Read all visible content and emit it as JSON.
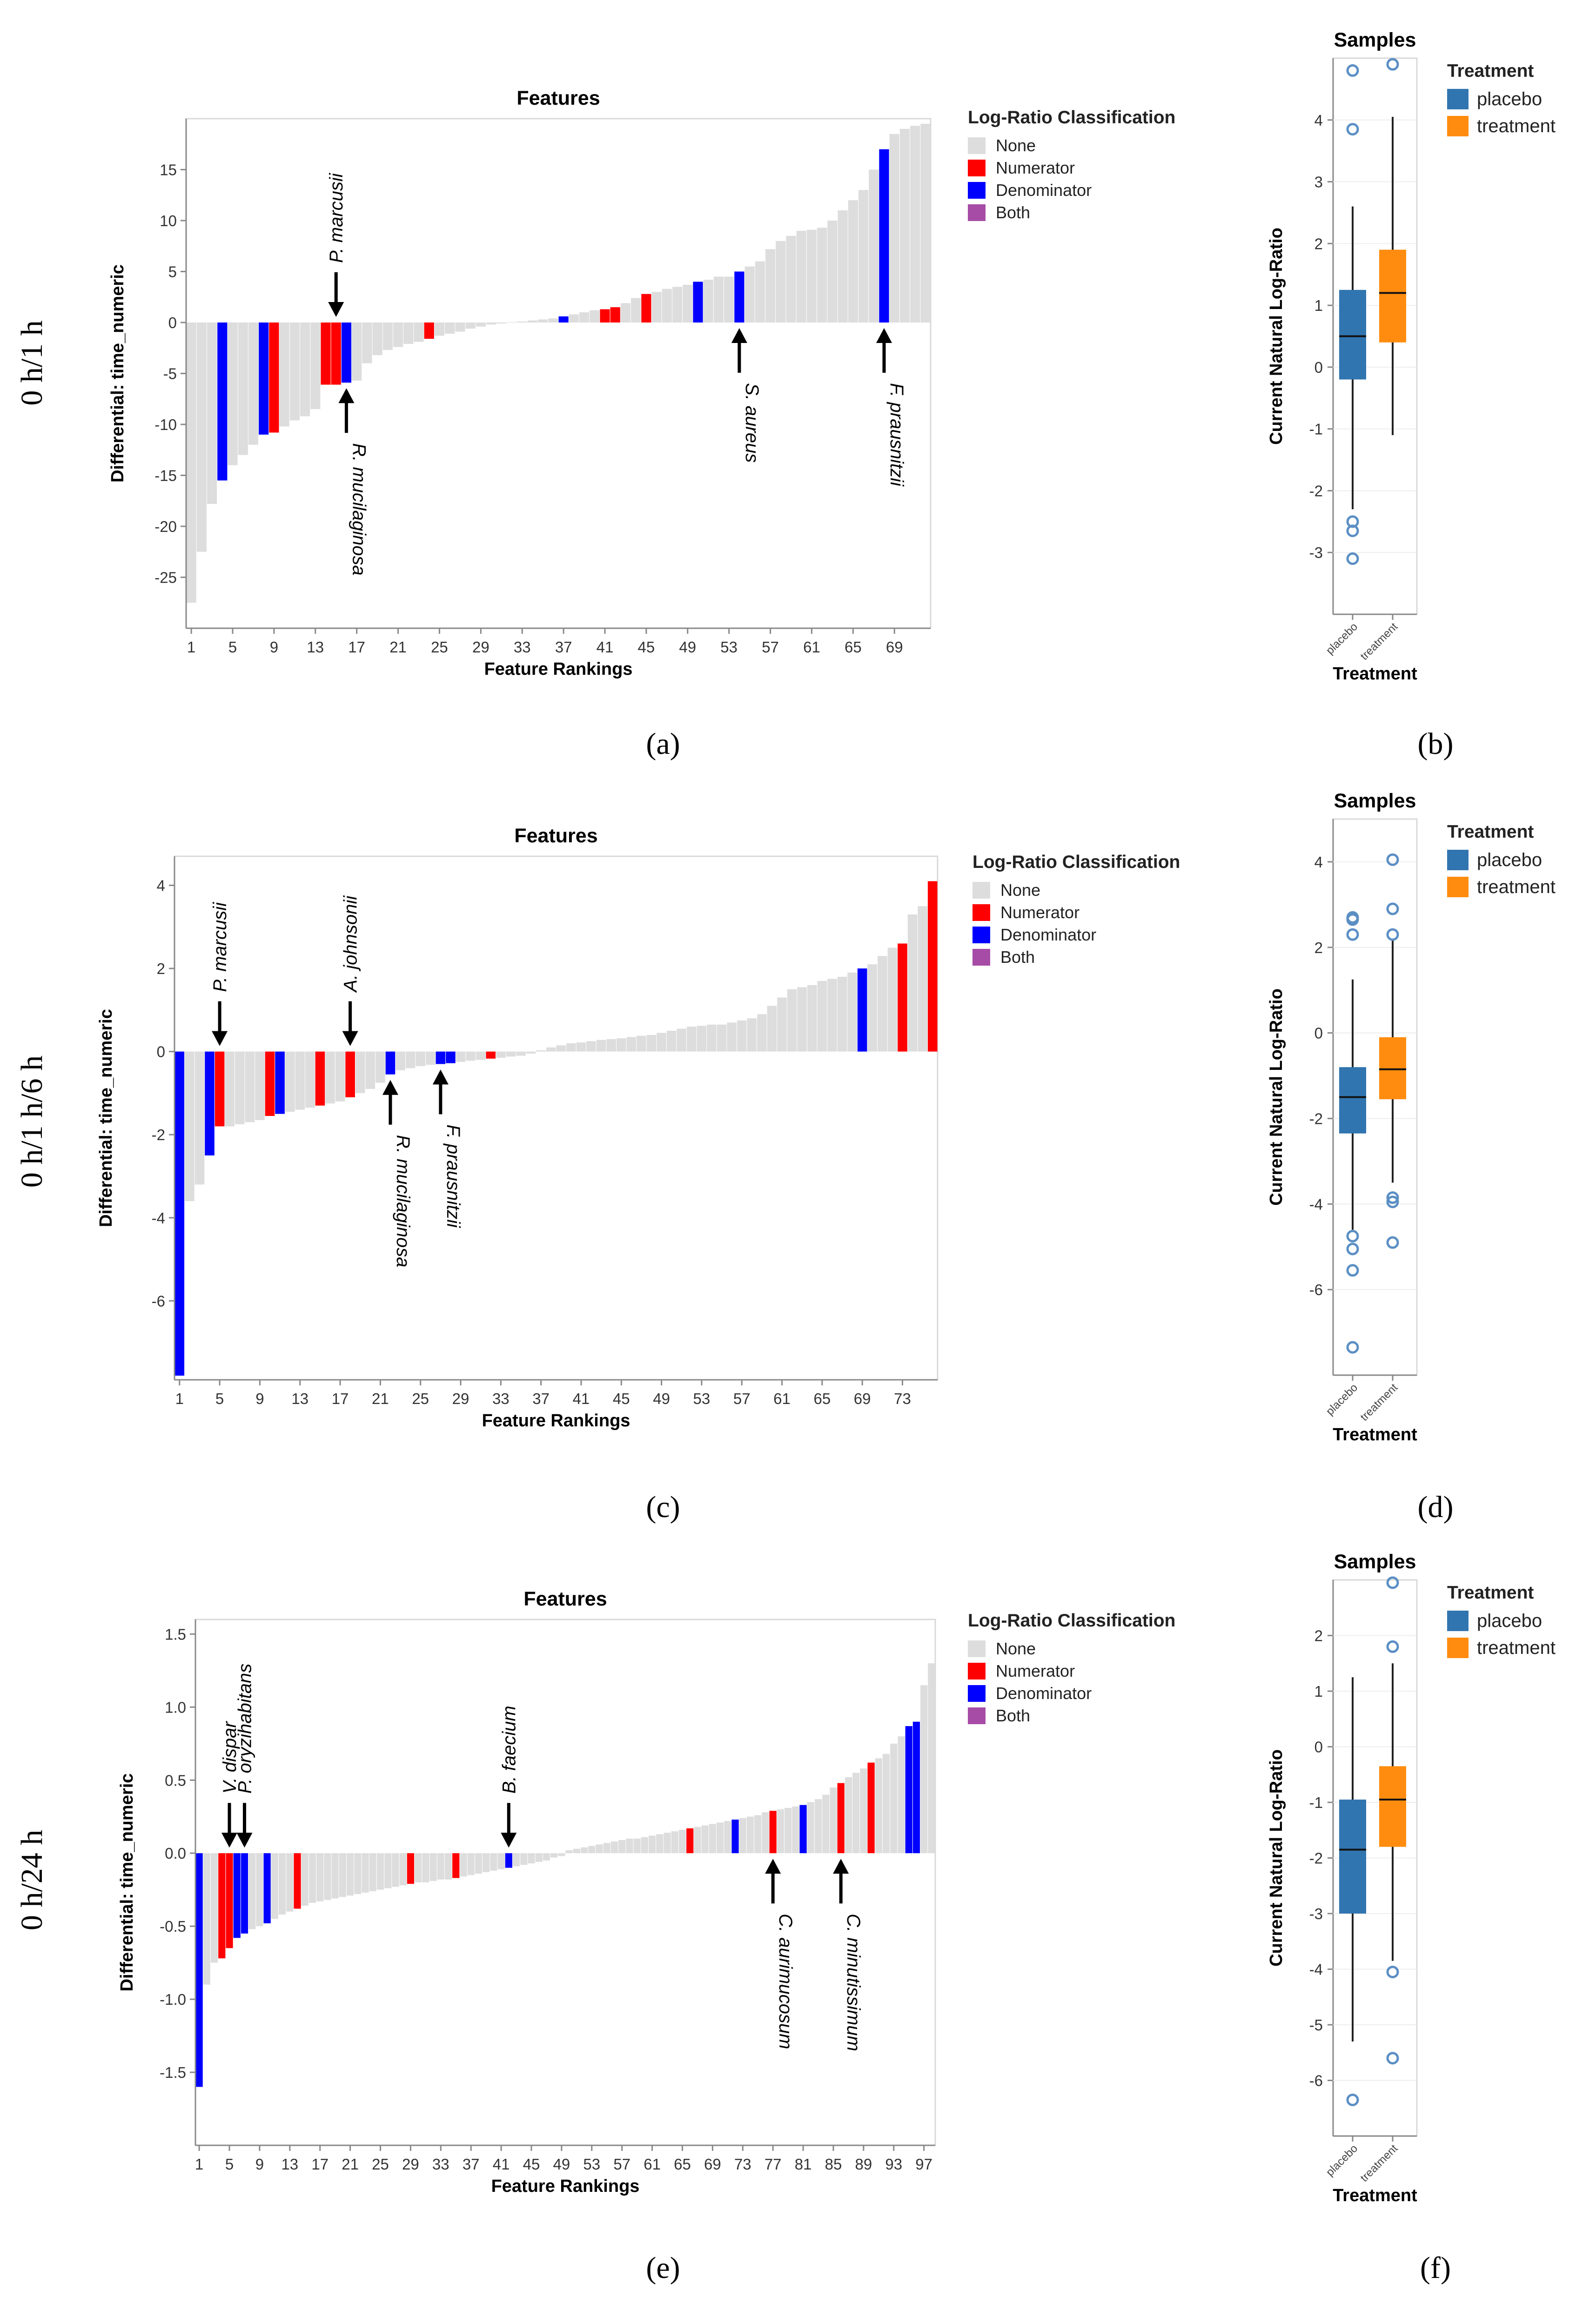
{
  "row_labels": [
    "0 h/1 h",
    "0 h/1 h/6 h",
    "0 h/24 h"
  ],
  "panel_labels": [
    "(a)",
    "(b)",
    "(c)",
    "(d)",
    "(e)",
    "(f)"
  ],
  "colors": {
    "None": "#dddddd",
    "Numerator": "#ff0000",
    "Denominator": "#0000ff",
    "Both": "#a64ca6",
    "placebo": "#3175b0",
    "treatment": "#ff8c0f"
  },
  "legend": {
    "title": "Log-Ratio Classification",
    "items": [
      "None",
      "Numerator",
      "Denominator",
      "Both"
    ]
  },
  "box_legend": {
    "title": "Treatment",
    "items": [
      "placebo",
      "treatment"
    ]
  },
  "chart_data": [
    {
      "type": "bar",
      "title": "Features",
      "xlabel": "Feature Rankings",
      "ylabel": "Differential: time_numeric",
      "ylim": [
        -30,
        20
      ],
      "yticks": [
        15,
        10,
        5,
        0,
        -5,
        -10,
        -15,
        -20,
        -25
      ],
      "xticks": [
        1,
        5,
        9,
        13,
        17,
        21,
        25,
        29,
        33,
        37,
        41,
        45,
        49,
        53,
        57,
        61,
        65,
        69
      ],
      "n": 72,
      "values": [
        -27.5,
        -22.5,
        -17.8,
        -15.5,
        -14,
        -13,
        -12,
        -11,
        -10.8,
        -10.2,
        -9.6,
        -9.2,
        -8.5,
        -6.1,
        -6.1,
        -5.9,
        -5.7,
        -4,
        -3.2,
        -2.7,
        -2.4,
        -2.1,
        -1.9,
        -1.6,
        -1.3,
        -1.1,
        -0.9,
        -0.6,
        -0.4,
        -0.2,
        -0.1,
        0.05,
        0.1,
        0.2,
        0.3,
        0.4,
        0.6,
        0.8,
        1,
        1.2,
        1.3,
        1.5,
        1.9,
        2.4,
        2.8,
        3,
        3.3,
        3.5,
        3.7,
        4,
        4.2,
        4.5,
        4.5,
        5,
        5.5,
        6,
        7.2,
        8,
        8.5,
        9,
        9.1,
        9.3,
        10,
        11,
        12,
        13,
        15,
        17,
        18.5,
        19,
        19.3,
        19.5
      ],
      "classes": {
        "3": "Denominator",
        "7": "Denominator",
        "8": "Numerator",
        "13": "Numerator",
        "14": "Numerator",
        "15": "Denominator",
        "23": "Numerator",
        "36": "Denominator",
        "40": "Numerator",
        "41": "Numerator",
        "44": "Numerator",
        "49": "Denominator",
        "53": "Denominator",
        "67": "Denominator"
      },
      "annotations": [
        {
          "label": "P. marcusii",
          "index": 14,
          "side": "above"
        },
        {
          "label": "R. mucilaginosa",
          "index": 15,
          "side": "below"
        },
        {
          "label": "S. aureus",
          "index": 53,
          "side": "below"
        },
        {
          "label": "F. prausnitzii",
          "index": 67,
          "side": "below"
        }
      ]
    },
    {
      "type": "bar",
      "title": "Features",
      "xlabel": "Feature Rankings",
      "ylabel": "Differential: time_numeric",
      "ylim": [
        -7.9,
        4.7
      ],
      "yticks": [
        4,
        2,
        0,
        -2,
        -4,
        -6
      ],
      "xticks": [
        1,
        5,
        9,
        13,
        17,
        21,
        25,
        29,
        33,
        37,
        41,
        45,
        49,
        53,
        57,
        61,
        65,
        69,
        73
      ],
      "n": 76,
      "values": [
        -7.8,
        -3.6,
        -3.2,
        -2.5,
        -1.8,
        -1.8,
        -1.75,
        -1.7,
        -1.65,
        -1.55,
        -1.5,
        -1.45,
        -1.4,
        -1.35,
        -1.3,
        -1.25,
        -1.2,
        -1.1,
        -1,
        -0.9,
        -0.75,
        -0.55,
        -0.45,
        -0.4,
        -0.35,
        -0.32,
        -0.3,
        -0.28,
        -0.25,
        -0.22,
        -0.2,
        -0.17,
        -0.15,
        -0.12,
        -0.1,
        -0.05,
        0.03,
        0.1,
        0.15,
        0.2,
        0.22,
        0.25,
        0.28,
        0.3,
        0.32,
        0.35,
        0.38,
        0.4,
        0.45,
        0.5,
        0.55,
        0.6,
        0.62,
        0.65,
        0.65,
        0.7,
        0.75,
        0.8,
        0.9,
        1.1,
        1.3,
        1.5,
        1.55,
        1.6,
        1.7,
        1.75,
        1.8,
        1.9,
        2,
        2.1,
        2.3,
        2.5,
        2.6,
        3.3,
        3.5,
        4.1
      ],
      "classes": {
        "0": "Denominator",
        "3": "Denominator",
        "4": "Numerator",
        "9": "Numerator",
        "10": "Denominator",
        "14": "Numerator",
        "17": "Numerator",
        "21": "Denominator",
        "26": "Denominator",
        "27": "Denominator",
        "31": "Numerator",
        "68": "Denominator",
        "72": "Numerator",
        "75": "Numerator"
      },
      "annotations": [
        {
          "label": "P. marcusii",
          "index": 4,
          "side": "above"
        },
        {
          "label": "A. johnsonii",
          "index": 17,
          "side": "above"
        },
        {
          "label": "R. mucilaginosa",
          "index": 21,
          "side": "below"
        },
        {
          "label": "F. prausnitzii",
          "index": 26,
          "side": "below"
        }
      ]
    },
    {
      "type": "bar",
      "title": "Features",
      "xlabel": "Feature Rankings",
      "ylabel": "Differential: time_numeric",
      "ylim": [
        -2,
        1.6
      ],
      "yticks": [
        1.5,
        1.0,
        0.5,
        0.0,
        -0.5,
        -1.0,
        -1.5
      ],
      "yticklabels": [
        "1.5",
        "1.0",
        "0.5",
        "0.0",
        "-0.5",
        "-1.0",
        "-1.5"
      ],
      "xticks": [
        1,
        5,
        9,
        13,
        17,
        21,
        25,
        29,
        33,
        37,
        41,
        45,
        49,
        53,
        57,
        61,
        65,
        69,
        73,
        77,
        81,
        85,
        89,
        93,
        97
      ],
      "n": 98,
      "values": [
        -1.6,
        -0.9,
        -0.75,
        -0.72,
        -0.65,
        -0.58,
        -0.55,
        -0.52,
        -0.5,
        -0.48,
        -0.45,
        -0.42,
        -0.4,
        -0.38,
        -0.36,
        -0.34,
        -0.33,
        -0.32,
        -0.31,
        -0.3,
        -0.29,
        -0.28,
        -0.27,
        -0.26,
        -0.25,
        -0.24,
        -0.23,
        -0.22,
        -0.21,
        -0.2,
        -0.2,
        -0.19,
        -0.18,
        -0.18,
        -0.17,
        -0.16,
        -0.15,
        -0.14,
        -0.13,
        -0.12,
        -0.11,
        -0.1,
        -0.09,
        -0.08,
        -0.07,
        -0.06,
        -0.05,
        -0.03,
        -0.02,
        0.02,
        0.03,
        0.04,
        0.05,
        0.06,
        0.07,
        0.08,
        0.09,
        0.1,
        0.1,
        0.11,
        0.12,
        0.13,
        0.14,
        0.15,
        0.16,
        0.17,
        0.18,
        0.19,
        0.2,
        0.21,
        0.22,
        0.23,
        0.24,
        0.25,
        0.26,
        0.28,
        0.29,
        0.3,
        0.31,
        0.32,
        0.33,
        0.35,
        0.37,
        0.4,
        0.45,
        0.48,
        0.52,
        0.55,
        0.58,
        0.62,
        0.65,
        0.68,
        0.75,
        0.8,
        0.87,
        0.9,
        1.15,
        1.3
      ],
      "classes": {
        "0": "Denominator",
        "3": "Numerator",
        "4": "Numerator",
        "5": "Denominator",
        "6": "Denominator",
        "9": "Denominator",
        "13": "Numerator",
        "28": "Numerator",
        "34": "Numerator",
        "41": "Denominator",
        "65": "Numerator",
        "71": "Denominator",
        "76": "Numerator",
        "80": "Denominator",
        "85": "Numerator",
        "89": "Numerator",
        "94": "Denominator",
        "95": "Denominator"
      },
      "annotations": [
        {
          "label": "V. dispar",
          "index": 4,
          "side": "above"
        },
        {
          "label": "P. oryzihabitans",
          "index": 6,
          "side": "above"
        },
        {
          "label": "B. faecium",
          "index": 41,
          "side": "above"
        },
        {
          "label": "C. aurimucosum",
          "index": 76,
          "side": "below"
        },
        {
          "label": "C. minutissimum",
          "index": 85,
          "side": "below"
        }
      ]
    },
    {
      "type": "box",
      "title": "Samples",
      "xlabel": "Treatment",
      "ylabel": "Current Natural Log-Ratio",
      "categories": [
        "placebo",
        "treatment"
      ],
      "ylim": [
        -4,
        5
      ],
      "yticks": [
        4,
        3,
        2,
        1,
        0,
        -1,
        -2,
        -3
      ],
      "boxes": [
        {
          "name": "placebo",
          "q1": -0.2,
          "median": 0.5,
          "q3": 1.25,
          "whisker_low": -2.3,
          "whisker_high": 2.6,
          "outliers": [
            4.8,
            3.85,
            -2.5,
            -2.65,
            -3.1
          ]
        },
        {
          "name": "treatment",
          "q1": 0.4,
          "median": 1.2,
          "q3": 1.9,
          "whisker_low": -1.1,
          "whisker_high": 4.05,
          "outliers": [
            4.9
          ]
        }
      ]
    },
    {
      "type": "box",
      "title": "Samples",
      "xlabel": "Treatment",
      "ylabel": "Current Natural Log-Ratio",
      "categories": [
        "placebo",
        "treatment"
      ],
      "ylim": [
        -8,
        5
      ],
      "yticks": [
        4,
        2,
        0,
        -2,
        -4,
        -6
      ],
      "boxes": [
        {
          "name": "placebo",
          "q1": -2.35,
          "median": -1.5,
          "q3": -0.8,
          "whisker_low": -4.6,
          "whisker_high": 1.25,
          "outliers": [
            2.7,
            2.65,
            2.3,
            -4.75,
            -5.05,
            -5.55,
            -7.35
          ]
        },
        {
          "name": "treatment",
          "q1": -1.55,
          "median": -0.85,
          "q3": -0.1,
          "whisker_low": -3.5,
          "whisker_high": 2.2,
          "outliers": [
            4.05,
            2.9,
            2.3,
            -3.85,
            -3.95,
            -4.9
          ]
        }
      ]
    },
    {
      "type": "box",
      "title": "Samples",
      "xlabel": "Treatment",
      "ylabel": "Current Natural Log-Ratio",
      "categories": [
        "placebo",
        "treatment"
      ],
      "ylim": [
        -7,
        3
      ],
      "yticks": [
        2,
        1,
        0,
        -1,
        -2,
        -3,
        -4,
        -5,
        -6
      ],
      "boxes": [
        {
          "name": "placebo",
          "q1": -3,
          "median": -1.85,
          "q3": -0.95,
          "whisker_low": -5.3,
          "whisker_high": 1.25,
          "outliers": [
            -6.35
          ]
        },
        {
          "name": "treatment",
          "q1": -1.8,
          "median": -0.95,
          "q3": -0.35,
          "whisker_low": -3.85,
          "whisker_high": 1.5,
          "outliers": [
            2.95,
            1.8,
            -4.05,
            -5.6
          ]
        }
      ]
    }
  ]
}
